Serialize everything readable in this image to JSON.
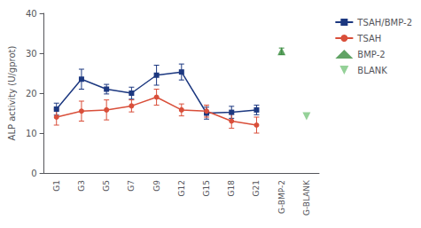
{
  "chart_data": {
    "type": "line",
    "categories": [
      "G1",
      "G3",
      "G5",
      "G7",
      "G9",
      "G12",
      "G15",
      "G18",
      "G21",
      "G-BMP-2",
      "G-BLANK"
    ],
    "series": [
      {
        "name": "TSAH/BMP-2",
        "type": "line",
        "color": "#1c3880",
        "marker": "square",
        "values": [
          16.0,
          23.5,
          21.0,
          20.0,
          24.5,
          25.3,
          15.0,
          15.2,
          15.8,
          null,
          null
        ],
        "errors": [
          1.5,
          2.5,
          1.2,
          1.5,
          2.5,
          2.0,
          1.5,
          1.5,
          1.2,
          null,
          null
        ]
      },
      {
        "name": "TSAH",
        "type": "line",
        "color": "#d94f3a",
        "marker": "circle",
        "values": [
          14.0,
          15.5,
          15.8,
          16.8,
          19.0,
          15.8,
          15.5,
          13.0,
          12.0,
          null,
          null
        ],
        "errors": [
          2.0,
          2.5,
          2.5,
          1.5,
          2.0,
          1.5,
          1.5,
          1.8,
          2.0,
          null,
          null
        ]
      },
      {
        "name": "BMP-2",
        "type": "scatter",
        "color": "#3a8c3f",
        "marker": "triangle-up",
        "values": [
          null,
          null,
          null,
          null,
          null,
          null,
          null,
          null,
          null,
          30.5,
          null
        ],
        "errors": [
          null,
          null,
          null,
          null,
          null,
          null,
          null,
          null,
          null,
          0.8,
          null
        ]
      },
      {
        "name": "BLANK",
        "type": "scatter",
        "color": "#7bc67e",
        "marker": "triangle-down",
        "values": [
          null,
          null,
          null,
          null,
          null,
          null,
          null,
          null,
          null,
          null,
          14.2
        ]
      }
    ],
    "ylabel": "ALP activity (U/gprot)",
    "ylim": [
      0,
      40
    ],
    "yticks": [
      0,
      10,
      20,
      30,
      40
    ],
    "grid": false,
    "legend": "right"
  }
}
